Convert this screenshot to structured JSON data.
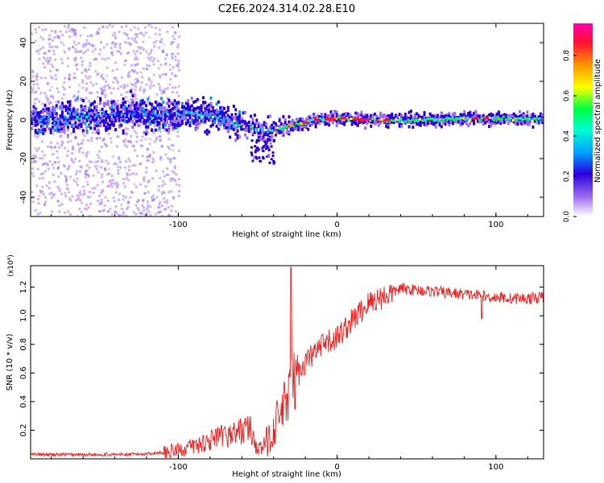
{
  "title": "C2E6.2024.314.02.28.E10",
  "chart_data": [
    {
      "type": "heatmap",
      "xlabel": "Height of straight line (km)",
      "ylabel": "Frequency (Hz)",
      "xlim": [
        -193,
        130
      ],
      "ylim": [
        -50,
        50
      ],
      "x_ticks": [
        -100,
        0,
        100
      ],
      "y_ticks": [
        -40,
        -20,
        0,
        20,
        40
      ],
      "grid": false,
      "ridge": [
        {
          "x": -190,
          "y": 0
        },
        {
          "x": -160,
          "y": 2
        },
        {
          "x": -130,
          "y": 3
        },
        {
          "x": -110,
          "y": 2
        },
        {
          "x": -90,
          "y": 3
        },
        {
          "x": -75,
          "y": 2
        },
        {
          "x": -62,
          "y": -2
        },
        {
          "x": -50,
          "y": -5
        },
        {
          "x": -42,
          "y": -6
        },
        {
          "x": -35,
          "y": -4
        },
        {
          "x": -25,
          "y": -2
        },
        {
          "x": -15,
          "y": 0
        },
        {
          "x": 0,
          "y": 1
        },
        {
          "x": 20,
          "y": 0
        },
        {
          "x": 60,
          "y": 0
        },
        {
          "x": 90,
          "y": 1
        },
        {
          "x": 130,
          "y": 0
        }
      ],
      "colorbar": {
        "label": "Normalized spectral amplitude",
        "range": [
          0,
          1
        ],
        "ticks": [
          0.0,
          0.2,
          0.4,
          0.6,
          0.8
        ],
        "colors": [
          "#ffffff",
          "#a06ef0",
          "#2a00e0",
          "#00a0ff",
          "#00ffd0",
          "#00ff40",
          "#ffff00",
          "#ff9900",
          "#ff1030",
          "#ff00b0"
        ]
      }
    },
    {
      "type": "line",
      "xlabel": "Height of straight line (km)",
      "ylabel": "SNR (10 * v/v)",
      "multiplier": "(x10⁴)",
      "xlim": [
        -193,
        130
      ],
      "ylim": [
        0,
        1.35
      ],
      "x_ticks": [
        -100,
        0,
        100
      ],
      "y_ticks": [
        0.2,
        0.4,
        0.6,
        0.8,
        1.0,
        1.2
      ],
      "color": "#ee2222",
      "series": [
        {
          "x": [
            -193,
            -170,
            -150,
            -130,
            -115,
            -100,
            -90,
            -80,
            -70,
            -60,
            -55,
            -50,
            -45,
            -40,
            -35,
            -30,
            -25,
            -20,
            -10,
            0,
            10,
            20,
            30,
            40,
            50,
            60,
            70,
            80,
            90,
            95,
            100,
            110,
            120,
            130
          ],
          "y": [
            0.03,
            0.03,
            0.03,
            0.03,
            0.04,
            0.06,
            0.09,
            0.13,
            0.16,
            0.2,
            0.22,
            0.06,
            0.1,
            0.22,
            0.32,
            0.45,
            0.58,
            0.68,
            0.78,
            0.85,
            0.97,
            1.09,
            1.14,
            1.19,
            1.18,
            1.17,
            1.16,
            1.15,
            1.14,
            1.13,
            1.13,
            1.12,
            1.12,
            1.13
          ]
        }
      ]
    }
  ]
}
